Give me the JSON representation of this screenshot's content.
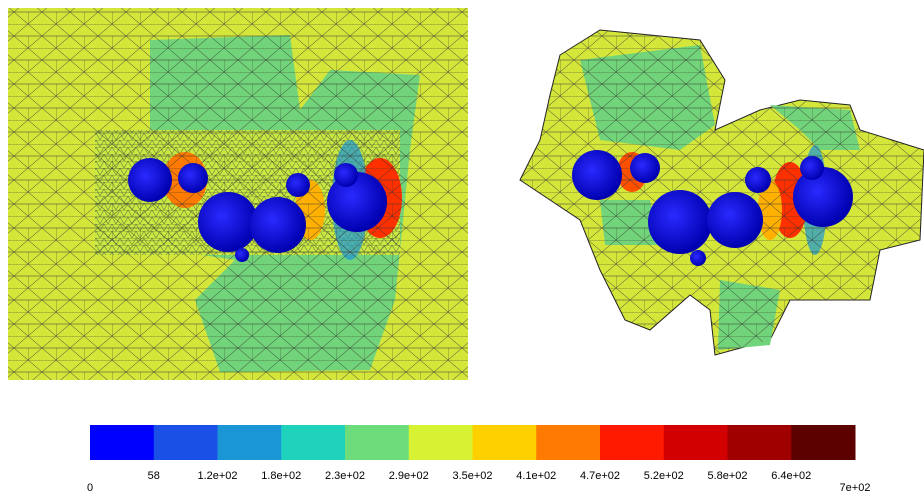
{
  "colorbar": {
    "colors": [
      "#0000ff",
      "#1a50e6",
      "#1a96d6",
      "#1ed2bc",
      "#6ddc7a",
      "#d6f232",
      "#ffd000",
      "#ff7a00",
      "#ff1a00",
      "#d20000",
      "#a00000",
      "#5c0000"
    ],
    "labels": [
      "0",
      "58",
      "1.2e+02",
      "1.8e+02",
      "2.3e+02",
      "2.9e+02",
      "3.5e+02",
      "4.1e+02",
      "4.7e+02",
      "5.2e+02",
      "5.8e+02",
      "6.4e+02",
      "7e+02"
    ]
  }
}
